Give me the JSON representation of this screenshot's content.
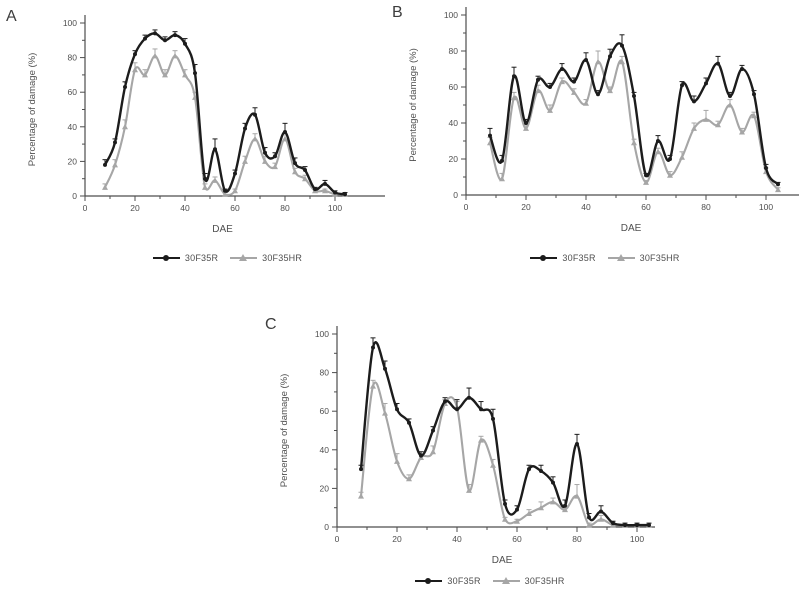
{
  "figure": {
    "y_axis_label": "Percentage of damage (%)",
    "x_axis_label": "DAE",
    "colors": {
      "series_black": "#1c1c1c",
      "series_gray": "#a6a6a6",
      "axis": "#4d4d4d",
      "text": "#4f4f4f"
    },
    "legend_labels": [
      "30F35R",
      "30F35HR"
    ]
  },
  "chart_data": [
    {
      "panel": "A",
      "type": "line",
      "xlabel": "DAE",
      "ylabel": "Percentage of damage (%)",
      "ylim": [
        0,
        100
      ],
      "xticks": [
        0,
        20,
        40,
        60,
        80,
        100
      ],
      "yticks": [
        0,
        20,
        40,
        60,
        80,
        100
      ],
      "grid": false,
      "legend_position": "bottom",
      "x": [
        8,
        12,
        16,
        20,
        24,
        28,
        32,
        36,
        40,
        44,
        48,
        52,
        56,
        60,
        64,
        68,
        72,
        76,
        80,
        84,
        88,
        92,
        96,
        100,
        104
      ],
      "series": [
        {
          "name": "30F35R",
          "color": "#1c1c1c",
          "marker": "circle",
          "values": [
            18,
            31,
            63,
            82,
            91,
            94,
            90,
            93,
            88,
            71,
            10,
            27,
            3,
            13,
            39,
            47,
            25,
            23,
            37,
            19,
            15,
            4,
            7,
            2,
            1
          ],
          "errors": [
            3,
            2,
            3,
            2,
            2,
            2,
            2,
            2,
            3,
            5,
            3,
            6,
            1,
            2,
            3,
            4,
            3,
            2,
            5,
            3,
            2,
            1,
            2,
            1,
            1
          ]
        },
        {
          "name": "30F35HR",
          "color": "#a6a6a6",
          "marker": "triangle",
          "values": [
            5,
            18,
            40,
            73,
            70,
            81,
            70,
            81,
            70,
            57,
            5,
            9,
            1,
            3,
            20,
            33,
            20,
            17,
            33,
            14,
            10,
            3,
            3,
            1,
            1
          ],
          "errors": [
            2,
            3,
            4,
            4,
            3,
            4,
            3,
            3,
            3,
            3,
            2,
            2,
            1,
            1,
            3,
            3,
            3,
            2,
            3,
            2,
            2,
            1,
            1,
            1,
            1
          ]
        }
      ]
    },
    {
      "panel": "B",
      "type": "line",
      "xlabel": "DAE",
      "ylabel": "Percentage of damage (%)",
      "ylim": [
        0,
        100
      ],
      "xticks": [
        0,
        20,
        40,
        60,
        80,
        100
      ],
      "yticks": [
        0,
        20,
        40,
        60,
        80,
        100
      ],
      "grid": false,
      "legend_position": "bottom",
      "x": [
        8,
        12,
        16,
        20,
        24,
        28,
        32,
        36,
        40,
        44,
        48,
        52,
        56,
        60,
        64,
        68,
        72,
        76,
        80,
        84,
        88,
        92,
        96,
        100,
        104
      ],
      "series": [
        {
          "name": "30F35R",
          "color": "#1c1c1c",
          "marker": "circle",
          "values": [
            33,
            19,
            66,
            40,
            64,
            60,
            70,
            63,
            75,
            56,
            77,
            83,
            55,
            11,
            30,
            20,
            61,
            52,
            62,
            73,
            55,
            70,
            56,
            15,
            6
          ],
          "errors": [
            4,
            3,
            5,
            2,
            2,
            2,
            3,
            2,
            4,
            2,
            4,
            6,
            2,
            1,
            3,
            2,
            2,
            3,
            3,
            4,
            2,
            2,
            2,
            2,
            1
          ]
        },
        {
          "name": "30F35HR",
          "color": "#a6a6a6",
          "marker": "triangle",
          "values": [
            29,
            9,
            54,
            37,
            58,
            47,
            63,
            57,
            51,
            74,
            58,
            74,
            29,
            7,
            24,
            11,
            21,
            37,
            42,
            39,
            50,
            35,
            44,
            13,
            3
          ],
          "errors": [
            3,
            3,
            3,
            2,
            3,
            3,
            2,
            2,
            2,
            6,
            2,
            3,
            2,
            1,
            2,
            2,
            3,
            3,
            5,
            2,
            3,
            2,
            2,
            2,
            1
          ]
        }
      ]
    },
    {
      "panel": "C",
      "type": "line",
      "xlabel": "DAE",
      "ylabel": "Percentage of damage (%)",
      "ylim": [
        0,
        100
      ],
      "xticks": [
        0,
        20,
        40,
        60,
        80,
        100
      ],
      "yticks": [
        0,
        20,
        40,
        60,
        80,
        100
      ],
      "grid": false,
      "legend_position": "bottom",
      "x": [
        8,
        12,
        16,
        20,
        24,
        28,
        32,
        36,
        40,
        44,
        48,
        52,
        56,
        60,
        64,
        68,
        72,
        76,
        80,
        84,
        88,
        92,
        96,
        100,
        104
      ],
      "series": [
        {
          "name": "30F35R",
          "color": "#1c1c1c",
          "marker": "circle",
          "values": [
            30,
            93,
            82,
            61,
            54,
            37,
            50,
            65,
            61,
            67,
            61,
            56,
            12,
            9,
            30,
            29,
            23,
            11,
            43,
            5,
            8,
            2,
            1,
            1,
            1
          ],
          "errors": [
            2,
            5,
            4,
            3,
            2,
            2,
            2,
            2,
            5,
            5,
            4,
            5,
            2,
            2,
            2,
            3,
            3,
            3,
            5,
            2,
            3,
            1,
            1,
            1,
            1
          ]
        },
        {
          "name": "30F35HR",
          "color": "#a6a6a6",
          "marker": "triangle",
          "values": [
            16,
            73,
            59,
            34,
            25,
            36,
            39,
            64,
            62,
            19,
            45,
            32,
            4,
            3,
            7,
            10,
            13,
            9,
            16,
            1,
            4,
            1,
            1,
            1,
            1
          ],
          "errors": [
            2,
            3,
            5,
            4,
            2,
            2,
            3,
            2,
            3,
            3,
            2,
            3,
            1,
            1,
            2,
            3,
            2,
            2,
            6,
            1,
            2,
            1,
            1,
            1,
            1
          ]
        }
      ]
    }
  ]
}
